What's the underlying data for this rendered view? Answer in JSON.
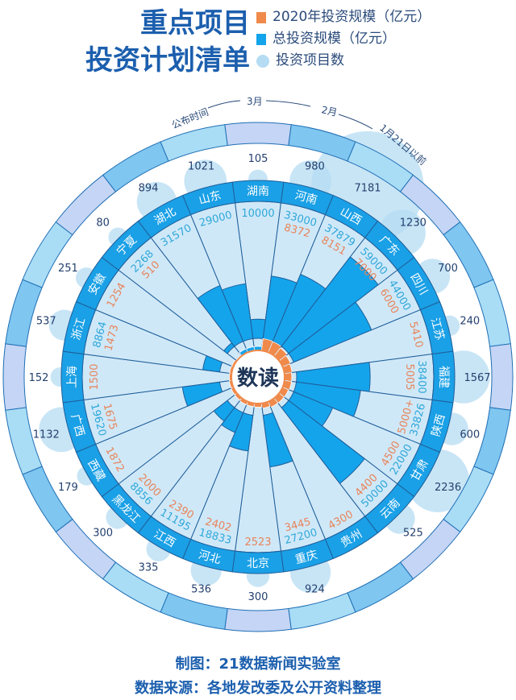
{
  "title": {
    "line1": "重点项目",
    "line2": "投资计划清单"
  },
  "legend": [
    {
      "label": "2020年投资规模（亿元）",
      "color": "#f08a4b"
    },
    {
      "label": "总投资规模（亿元）",
      "color": "#14a4ec"
    },
    {
      "label": "投资项目数",
      "color": "#b5dcf3"
    }
  ],
  "timeline": {
    "label": "公布时间",
    "marks": [
      "3月",
      "2月",
      "1月21日以前"
    ]
  },
  "logo": "数读",
  "footer": {
    "credit": "制图：21数据新闻实验室",
    "source": "数据来源：各地发改委及公开资料整理"
  },
  "chart_data": {
    "type": "radial-bar",
    "units": "亿元",
    "categories": [
      "湖南",
      "河南",
      "山西",
      "广东",
      "四川",
      "江苏",
      "福建",
      "陕西",
      "甘肃",
      "云南",
      "贵州",
      "重庆",
      "北京",
      "河北",
      "江西",
      "黑龙江",
      "西藏",
      "广西",
      "上海",
      "浙江",
      "安徽",
      "宁夏",
      "湖北",
      "山东"
    ],
    "series": [
      {
        "name": "2020年投资规模（亿元）",
        "values": [
          null,
          8372,
          8151,
          7000,
          6000,
          5410,
          5005,
          "5000+",
          4500,
          4400,
          4300,
          3445,
          2523,
          2402,
          2390,
          2000,
          1872,
          1675,
          1500,
          1473,
          1254,
          510,
          null,
          null
        ]
      },
      {
        "name": "总投资规模（亿元）",
        "values": [
          10000,
          33000,
          37879,
          59000,
          44000,
          null,
          38400,
          33826,
          22000,
          50000,
          null,
          27200,
          null,
          18833,
          11195,
          8856,
          null,
          19620,
          null,
          8864,
          null,
          2268,
          31570,
          29000
        ]
      },
      {
        "name": "投资项目数",
        "values": [
          105,
          980,
          7181,
          1230,
          700,
          240,
          1567,
          600,
          2236,
          525,
          null,
          924,
          300,
          536,
          335,
          300,
          179,
          1132,
          152,
          537,
          251,
          80,
          894,
          1021
        ]
      }
    ]
  }
}
